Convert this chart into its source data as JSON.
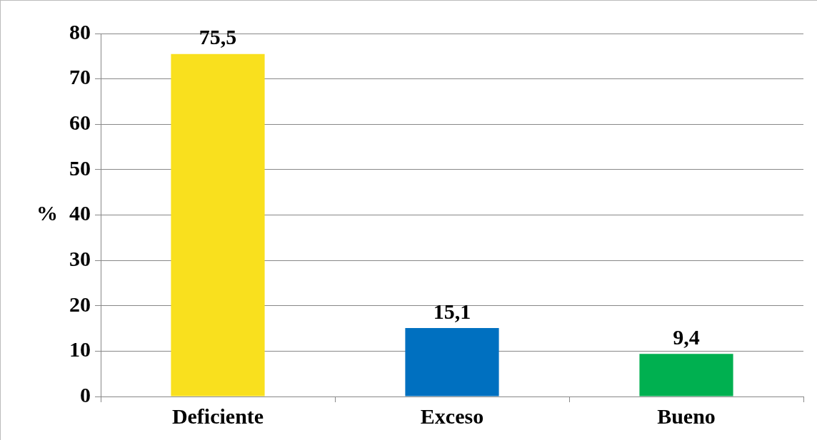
{
  "chart_data": {
    "type": "bar",
    "ylabel": "%",
    "categories": [
      "Deficiente",
      "Exceso",
      "Bueno"
    ],
    "values": [
      75.5,
      15.1,
      9.4
    ],
    "colors": [
      "#f9e01e",
      "#0070c0",
      "#00b050"
    ],
    "value_labels": [
      "75,5",
      "15,1",
      "9,4"
    ],
    "ylim": [
      0,
      80
    ],
    "yticks": [
      0,
      10,
      20,
      30,
      40,
      50,
      60,
      70,
      80
    ],
    "grid": "y",
    "legend": false
  }
}
